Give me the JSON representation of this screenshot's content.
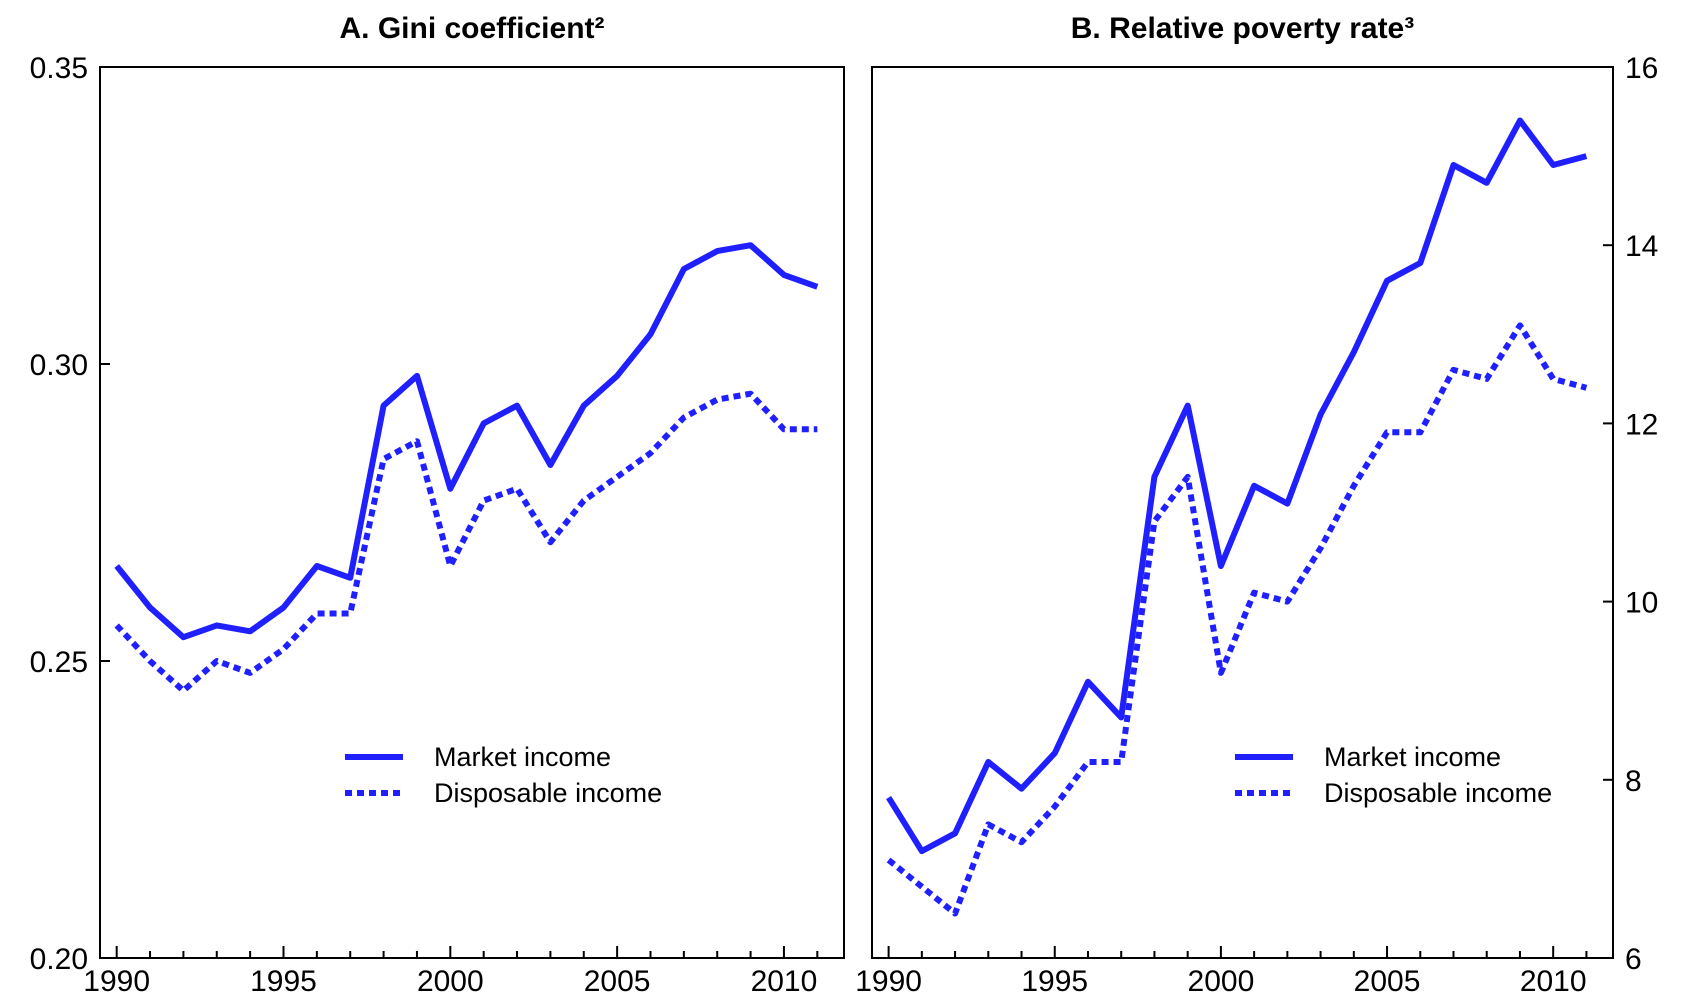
{
  "chart_data": [
    {
      "type": "line",
      "title": "A. Gini coefficient²",
      "ylabel": "",
      "xlabel": "",
      "ylim": [
        0.2,
        0.35
      ],
      "xlim": [
        1989.5,
        2011.8
      ],
      "yticks": [
        "0.20",
        "0.25",
        "0.30",
        "0.35"
      ],
      "ytick_values": [
        0.2,
        0.25,
        0.3,
        0.35
      ],
      "xticks": [
        "1990",
        "1995",
        "2000",
        "2005",
        "2010"
      ],
      "xtick_values": [
        1990,
        1995,
        2000,
        2005,
        2010
      ],
      "y_axis_side": "left",
      "legend_position": "lower-center",
      "grid": false,
      "x": [
        1990,
        1991,
        1992,
        1993,
        1994,
        1995,
        1996,
        1997,
        1998,
        1999,
        2000,
        2001,
        2002,
        2003,
        2004,
        2005,
        2006,
        2007,
        2008,
        2009,
        2010,
        2011
      ],
      "series": [
        {
          "name": "Market income",
          "style": "solid",
          "color": "#1f1fff",
          "values": [
            0.266,
            0.259,
            0.254,
            0.256,
            0.255,
            0.259,
            0.266,
            0.264,
            0.293,
            0.298,
            0.279,
            0.29,
            0.293,
            0.283,
            0.293,
            0.298,
            0.305,
            0.316,
            0.319,
            0.32,
            0.315,
            0.313
          ]
        },
        {
          "name": "Disposable income",
          "style": "dotted",
          "color": "#1f1fff",
          "values": [
            0.256,
            0.25,
            0.245,
            0.25,
            0.248,
            0.252,
            0.258,
            0.258,
            0.284,
            0.287,
            0.266,
            0.277,
            0.279,
            0.27,
            0.277,
            0.281,
            0.285,
            0.291,
            0.294,
            0.295,
            0.289,
            0.289
          ]
        }
      ]
    },
    {
      "type": "line",
      "title": "B. Relative poverty rate³",
      "ylabel": "",
      "xlabel": "",
      "ylim": [
        6,
        16
      ],
      "xlim": [
        1989.5,
        2011.8
      ],
      "yticks": [
        "6",
        "8",
        "10",
        "12",
        "14",
        "16"
      ],
      "ytick_values": [
        6,
        8,
        10,
        12,
        14,
        16
      ],
      "xticks": [
        "1990",
        "1995",
        "2000",
        "2005",
        "2010"
      ],
      "xtick_values": [
        1990,
        1995,
        2000,
        2005,
        2010
      ],
      "y_axis_side": "right",
      "legend_position": "lower-right",
      "grid": false,
      "x": [
        1990,
        1991,
        1992,
        1993,
        1994,
        1995,
        1996,
        1997,
        1998,
        1999,
        2000,
        2001,
        2002,
        2003,
        2004,
        2005,
        2006,
        2007,
        2008,
        2009,
        2010,
        2011
      ],
      "series": [
        {
          "name": "Market income",
          "style": "solid",
          "color": "#1f1fff",
          "values": [
            7.8,
            7.2,
            7.4,
            8.2,
            7.9,
            8.3,
            9.1,
            8.7,
            11.4,
            12.2,
            10.4,
            11.3,
            11.1,
            12.1,
            12.8,
            13.6,
            13.8,
            14.9,
            14.7,
            15.4,
            14.9,
            15.0
          ]
        },
        {
          "name": "Disposable income",
          "style": "dotted",
          "color": "#1f1fff",
          "values": [
            7.1,
            6.8,
            6.5,
            7.5,
            7.3,
            7.7,
            8.2,
            8.2,
            10.9,
            11.4,
            9.2,
            10.1,
            10.0,
            10.6,
            11.3,
            11.9,
            11.9,
            12.6,
            12.5,
            13.1,
            12.5,
            12.4
          ]
        }
      ]
    }
  ]
}
